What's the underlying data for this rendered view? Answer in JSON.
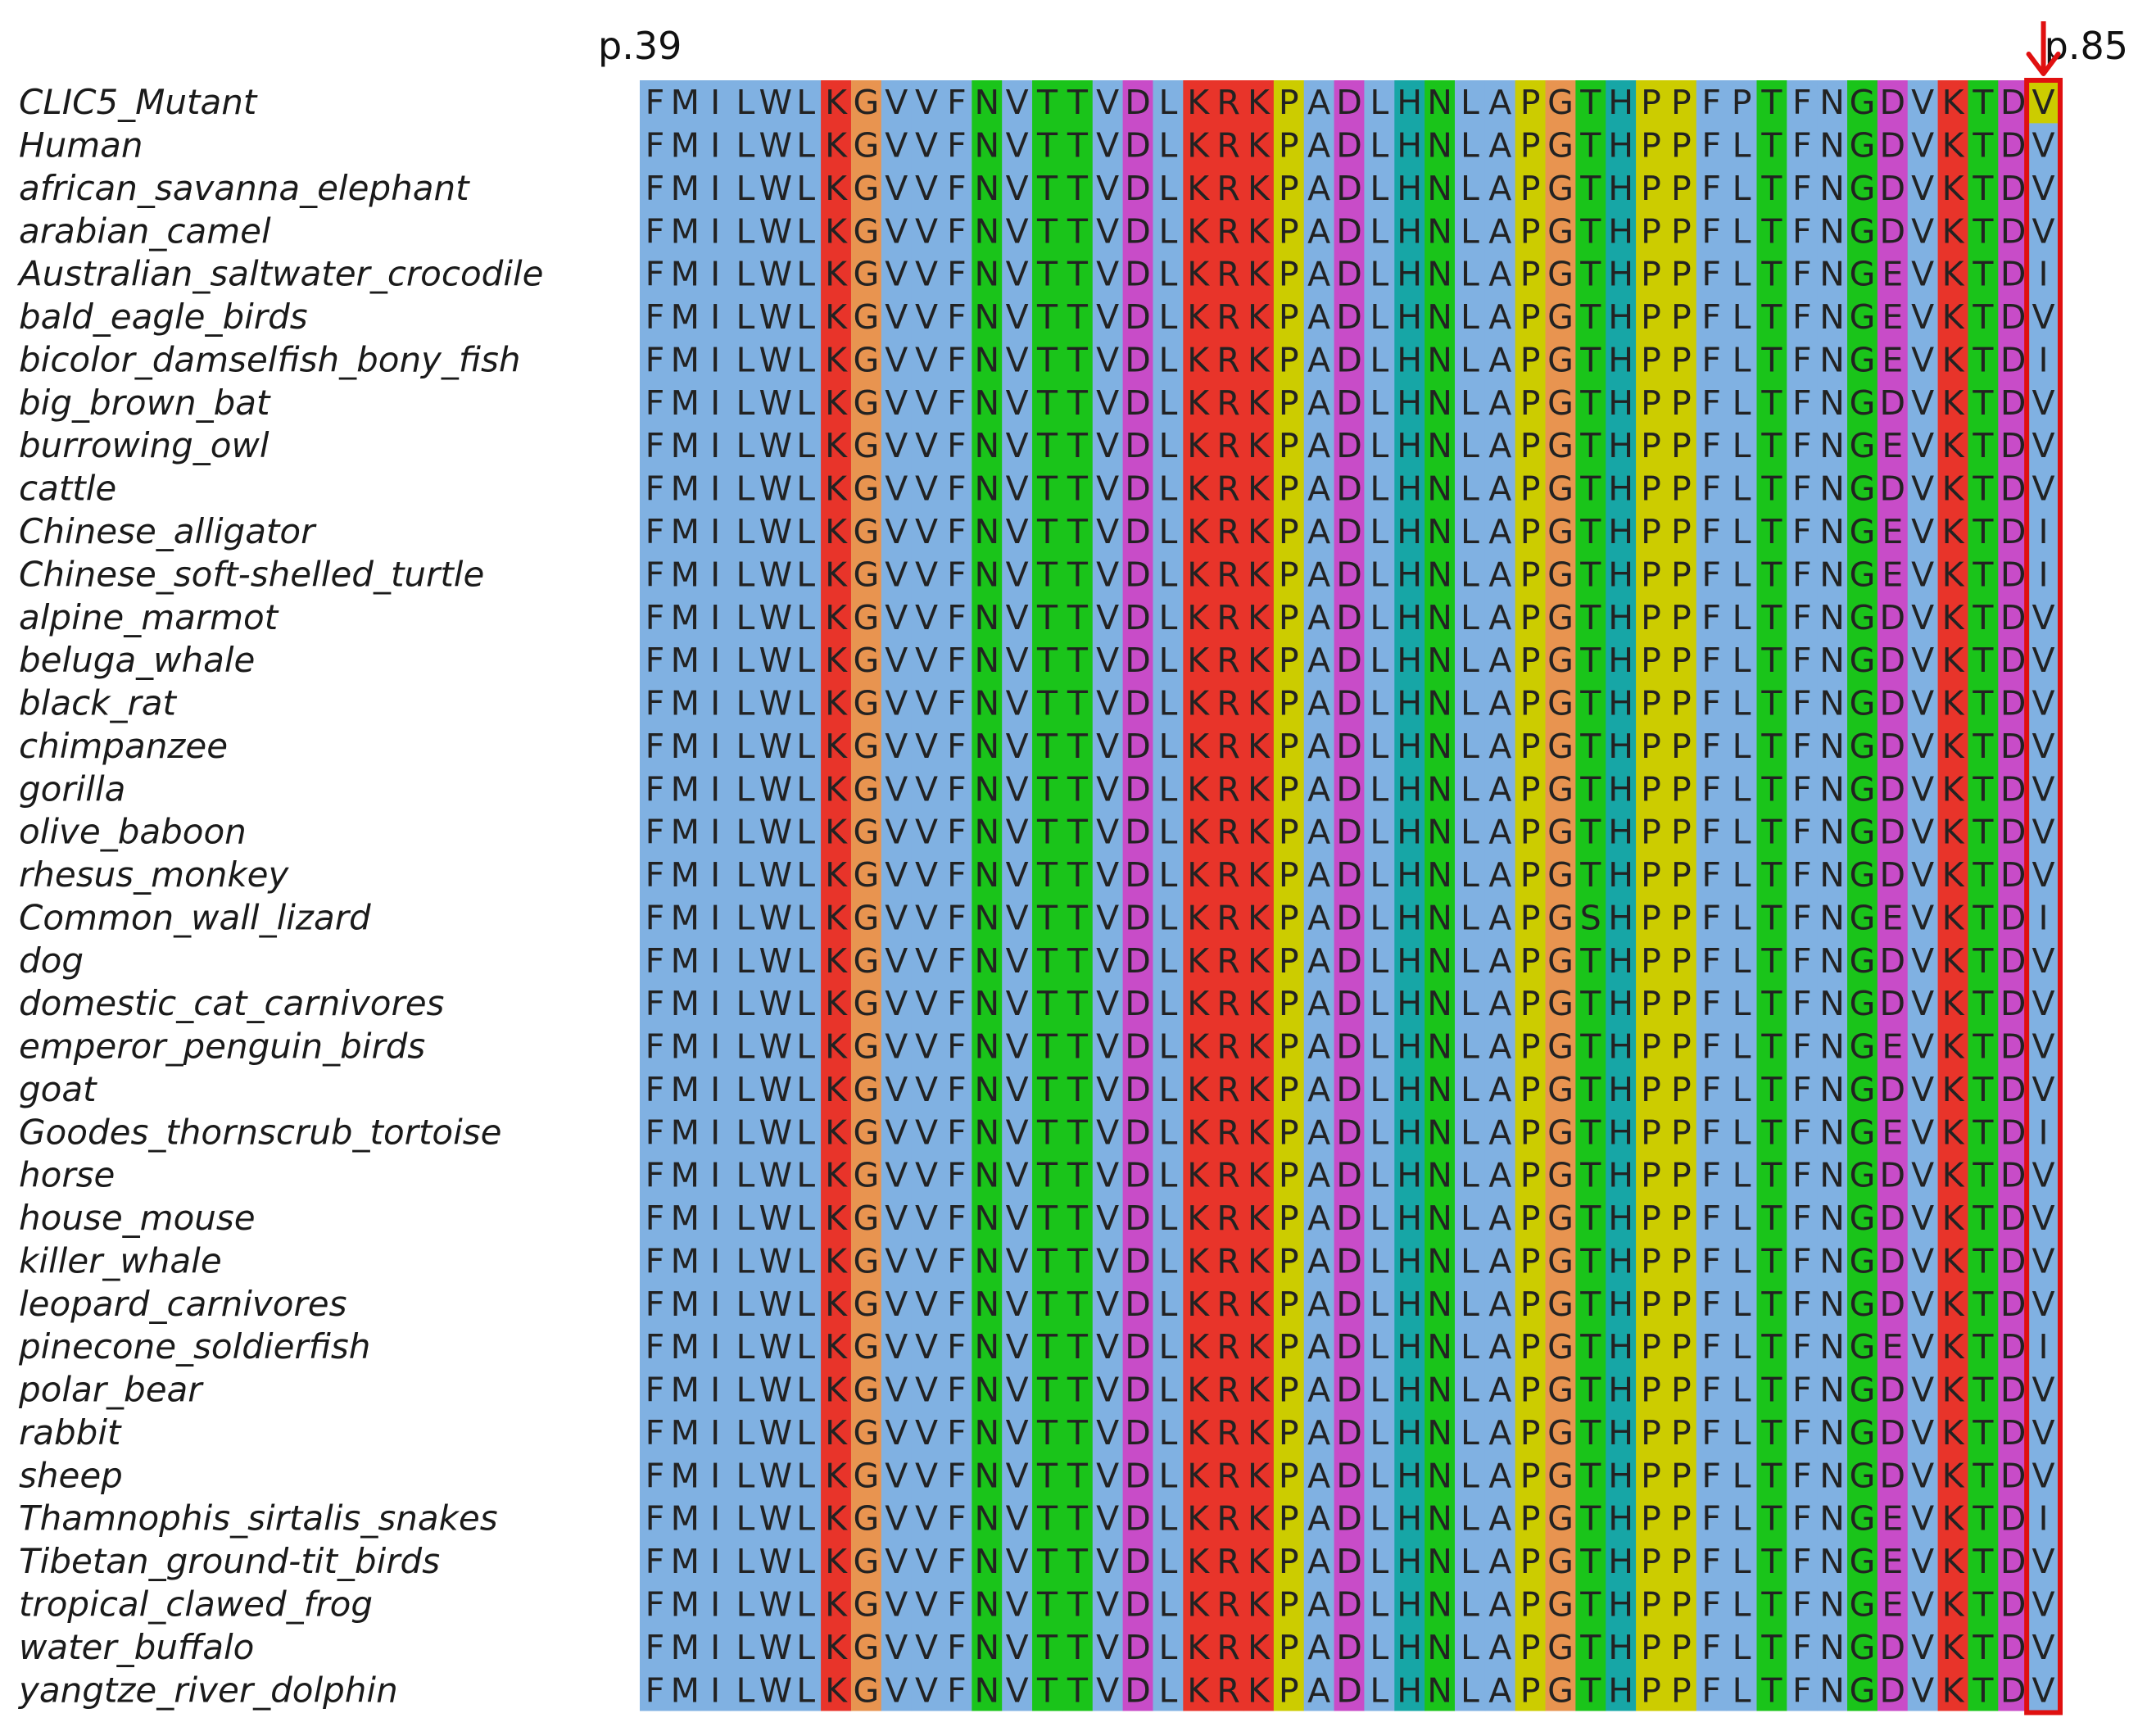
{
  "figure": {
    "start_label": "p.39",
    "end_label": "p.85",
    "highlight_column_index": 47,
    "colors": {
      "blue": "#80b1e2",
      "red": "#e8342a",
      "orange": "#e89450",
      "green": "#1ac41a",
      "magenta": "#c84cc8",
      "yellow": "#cccc00",
      "cyan": "#17a6a6",
      "box": "#e01010",
      "arrow": "#e01010"
    },
    "column_colors": [
      "blue",
      "blue",
      "blue",
      "blue",
      "blue",
      "blue",
      "red",
      "orange",
      "blue",
      "blue",
      "blue",
      "green",
      "blue",
      "green",
      "green",
      "blue",
      "magenta",
      "blue",
      "red",
      "red",
      "red",
      "yellow",
      "blue",
      "magenta",
      "blue",
      "cyan",
      "green",
      "blue",
      "blue",
      "yellow",
      "orange",
      "green",
      "cyan",
      "yellow",
      "yellow",
      "blue",
      "blue",
      "green",
      "blue",
      "blue",
      "green",
      "magenta",
      "blue",
      "red",
      "green",
      "magenta",
      "blue"
    ]
  },
  "sequences": [
    {
      "name": "CLIC5_Mutant",
      "seq": "FMILWLKGVVFNVTTVDLKRKPADLHNLAPGTHPPFPTFNGDVKTDV"
    },
    {
      "name": "Human",
      "seq": "FMILWLKGVVFNVTTVDLKRKPADLHNLAPGTHPPFLTFNGDVKTDV"
    },
    {
      "name": "african_savanna_elephant",
      "seq": "FMILWLKGVVFNVTTVDLKRKPADLHNLAPGTHPPFLTFNGDVKTDV"
    },
    {
      "name": "arabian_camel",
      "seq": "FMILWLKGVVFNVTTVDLKRKPADLHNLAPGTHPPFLTFNGDVKTDV"
    },
    {
      "name": "Australian_saltwater_crocodile",
      "seq": "FMILWLKGVVFNVTTVDLKRKPADLHNLAPGTHPPFLTFNGEVKTDI"
    },
    {
      "name": "bald_eagle_birds",
      "seq": "FMILWLKGVVFNVTTVDLKRKPADLHNLAPGTHPPFLTFNGEVKTDV"
    },
    {
      "name": "bicolor_damselfish_bony_fish",
      "seq": "FMILWLKGVVFNVTTVDLKRKPADLHNLAPGTHPPFLTFNGEVKTDI"
    },
    {
      "name": "big_brown_bat",
      "seq": "FMILWLKGVVFNVTTVDLKRKPADLHNLAPGTHPPFLTFNGDVKTDV"
    },
    {
      "name": "burrowing_owl",
      "seq": "FMILWLKGVVFNVTTVDLKRKPADLHNLAPGTHPPFLTFNGEVKTDV"
    },
    {
      "name": "cattle",
      "seq": "FMILWLKGVVFNVTTVDLKRKPADLHNLAPGTHPPFLTFNGDVKTDV"
    },
    {
      "name": "Chinese_alligator",
      "seq": "FMILWLKGVVFNVTTVDLKRKPADLHNLAPGTHPPFLTFNGEVKTDI"
    },
    {
      "name": "Chinese_soft-shelled_turtle",
      "seq": "FMILWLKGVVFNVTTVDLKRKPADLHNLAPGTHPPFLTFNGEVKTDI"
    },
    {
      "name": "alpine_marmot",
      "seq": "FMILWLKGVVFNVTTVDLKRKPADLHNLAPGTHPPFLTFNGDVKTDV"
    },
    {
      "name": "beluga_whale",
      "seq": "FMILWLKGVVFNVTTVDLKRKPADLHNLAPGTHPPFLTFNGDVKTDV"
    },
    {
      "name": "black_rat",
      "seq": "FMILWLKGVVFNVTTVDLKRKPADLHNLAPGTHPPFLTFNGDVKTDV"
    },
    {
      "name": "chimpanzee",
      "seq": "FMILWLKGVVFNVTTVDLKRKPADLHNLAPGTHPPFLTFNGDVKTDV"
    },
    {
      "name": "gorilla",
      "seq": "FMILWLKGVVFNVTTVDLKRKPADLHNLAPGTHPPFLTFNGDVKTDV"
    },
    {
      "name": "olive_baboon",
      "seq": "FMILWLKGVVFNVTTVDLKRKPADLHNLAPGTHPPFLTFNGDVKTDV"
    },
    {
      "name": "rhesus_monkey",
      "seq": "FMILWLKGVVFNVTTVDLKRKPADLHNLAPGTHPPFLTFNGDVKTDV"
    },
    {
      "name": "Common_wall_lizard",
      "seq": "FMILWLKGVVFNVTTVDLKRKPADLHNLAPGSHPPFLTFNGEVKTDI"
    },
    {
      "name": "dog",
      "seq": "FMILWLKGVVFNVTTVDLKRKPADLHNLAPGTHPPFLTFNGDVKTDV"
    },
    {
      "name": "domestic_cat_carnivores",
      "seq": "FMILWLKGVVFNVTTVDLKRKPADLHNLAPGTHPPFLTFNGDVKTDV"
    },
    {
      "name": "emperor_penguin_birds",
      "seq": "FMILWLKGVVFNVTTVDLKRKPADLHNLAPGTHPPFLTFNGEVKTDV"
    },
    {
      "name": "goat",
      "seq": "FMILWLKGVVFNVTTVDLKRKPADLHNLAPGTHPPFLTFNGDVKTDV"
    },
    {
      "name": "Goodes_thornscrub_tortoise",
      "seq": "FMILWLKGVVFNVTTVDLKRKPADLHNLAPGTHPPFLTFNGEVKTDI"
    },
    {
      "name": "horse",
      "seq": "FMILWLKGVVFNVTTVDLKRKPADLHNLAPGTHPPFLTFNGDVKTDV"
    },
    {
      "name": "house_mouse",
      "seq": "FMILWLKGVVFNVTTVDLKRKPADLHNLAPGTHPPFLTFNGDVKTDV"
    },
    {
      "name": "killer_whale",
      "seq": "FMILWLKGVVFNVTTVDLKRKPADLHNLAPGTHPPFLTFNGDVKTDV"
    },
    {
      "name": "leopard_carnivores",
      "seq": "FMILWLKGVVFNVTTVDLKRKPADLHNLAPGTHPPFLTFNGDVKTDV"
    },
    {
      "name": "pinecone_soldierfish",
      "seq": "FMILWLKGVVFNVTTVDLKRKPADLHNLAPGTHPPFLTFNGEVKTDI"
    },
    {
      "name": "polar_bear",
      "seq": "FMILWLKGVVFNVTTVDLKRKPADLHNLAPGTHPPFLTFNGDVKTDV"
    },
    {
      "name": "rabbit",
      "seq": "FMILWLKGVVFNVTTVDLKRKPADLHNLAPGTHPPFLTFNGDVKTDV"
    },
    {
      "name": "sheep",
      "seq": "FMILWLKGVVFNVTTVDLKRKPADLHNLAPGTHPPFLTFNGDVKTDV"
    },
    {
      "name": "Thamnophis_sirtalis_snakes",
      "seq": "FMILWLKGVVFNVTTVDLKRKPADLHNLAPGTHPPFLTFNGEVKTDI"
    },
    {
      "name": "Tibetan_ground-tit_birds",
      "seq": "FMILWLKGVVFNVTTVDLKRKPADLHNLAPGTHPPFLTFNGEVKTDV"
    },
    {
      "name": "tropical_clawed_frog",
      "seq": "FMILWLKGVVFNVTTVDLKRKPADLHNLAPGTHPPFLTFNGEVKTDV"
    },
    {
      "name": "water_buffalo",
      "seq": "FMILWLKGVVFNVTTVDLKRKPADLHNLAPGTHPPFLTFNGDVKTDV"
    },
    {
      "name": "yangtze_river_dolphin",
      "seq": "FMILWLKGVVFNVTTVDLKRKPADLHNLAPGTHPPFLTFNGDVKTDV"
    }
  ]
}
